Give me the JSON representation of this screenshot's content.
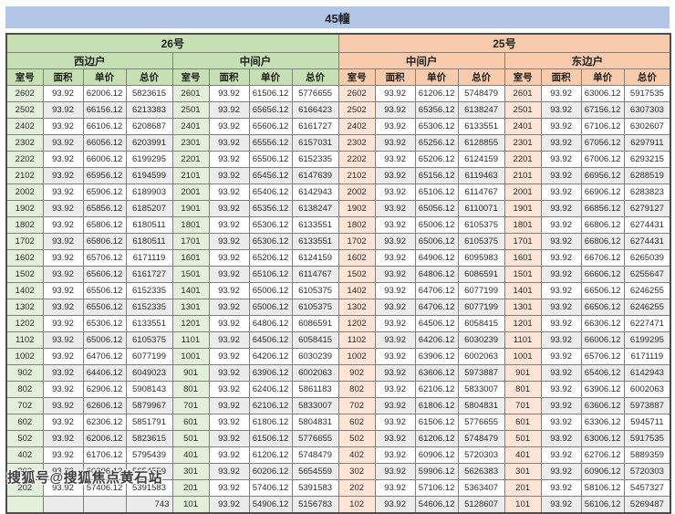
{
  "title": "45幢",
  "watermark": "搜狐号@搜狐焦点黄石站",
  "columns": [
    "室号",
    "面积",
    "单价",
    "总价"
  ],
  "colors": {
    "title_bar": "#b4c6e7",
    "section_26_header": "#c6e0b4",
    "section_25_header": "#f8cbad",
    "room_col_26_tint": "#e2efda",
    "room_col_25_tint": "#fce4d6",
    "row_stripe": "#ececec",
    "grid_border": "#808080"
  },
  "sections": [
    {
      "name": "26号",
      "groups": [
        {
          "name": "西边户",
          "rows": [
            [
              "2602",
              "93.92",
              "62006.12",
              "5823615"
            ],
            [
              "2502",
              "93.92",
              "66156.12",
              "6213383"
            ],
            [
              "2402",
              "93.92",
              "66106.12",
              "6208687"
            ],
            [
              "2302",
              "93.92",
              "66056.12",
              "6203991"
            ],
            [
              "2202",
              "93.92",
              "66006.12",
              "6199295"
            ],
            [
              "2102",
              "93.92",
              "65956.12",
              "6194599"
            ],
            [
              "2002",
              "93.92",
              "65906.12",
              "6189903"
            ],
            [
              "1902",
              "93.92",
              "65856.12",
              "6185207"
            ],
            [
              "1802",
              "93.92",
              "65806.12",
              "6180511"
            ],
            [
              "1702",
              "93.92",
              "65806.12",
              "6180511"
            ],
            [
              "1602",
              "93.92",
              "65706.12",
              "6171119"
            ],
            [
              "1502",
              "93.92",
              "65606.12",
              "6161727"
            ],
            [
              "1402",
              "93.92",
              "65506.12",
              "6152335"
            ],
            [
              "1302",
              "93.92",
              "65506.12",
              "6152335"
            ],
            [
              "1202",
              "93.92",
              "65306.12",
              "6133551"
            ],
            [
              "1102",
              "93.92",
              "65006.12",
              "6105375"
            ],
            [
              "1002",
              "93.92",
              "64706.12",
              "6077199"
            ],
            [
              "902",
              "93.92",
              "64406.12",
              "6049023"
            ],
            [
              "802",
              "93.92",
              "62906.12",
              "5908143"
            ],
            [
              "702",
              "93.92",
              "62606.12",
              "5879967"
            ],
            [
              "602",
              "93.92",
              "62306.12",
              "5851791"
            ],
            [
              "502",
              "93.92",
              "62006.12",
              "5823615"
            ],
            [
              "402",
              "93.92",
              "61706.12",
              "5795439"
            ],
            [
              "302",
              "93.92",
              "60206.12",
              "5654559"
            ],
            [
              "202",
              "93.92",
              "57406.12",
              "5391583"
            ],
            [
              "",
              "",
              "",
              "743"
            ]
          ]
        },
        {
          "name": "中间户",
          "rows": [
            [
              "2601",
              "93.92",
              "61506.12",
              "5776655"
            ],
            [
              "2501",
              "93.92",
              "65656.12",
              "6166423"
            ],
            [
              "2401",
              "93.92",
              "65606.12",
              "6161727"
            ],
            [
              "2301",
              "93.92",
              "65556.12",
              "6157031"
            ],
            [
              "2201",
              "93.92",
              "65506.12",
              "6152335"
            ],
            [
              "2101",
              "93.92",
              "65456.12",
              "6147639"
            ],
            [
              "2001",
              "93.92",
              "65406.12",
              "6142943"
            ],
            [
              "1901",
              "93.92",
              "65356.12",
              "6138247"
            ],
            [
              "1801",
              "93.92",
              "65306.12",
              "6133551"
            ],
            [
              "1701",
              "93.92",
              "65306.12",
              "6133551"
            ],
            [
              "1601",
              "93.92",
              "65206.12",
              "6124159"
            ],
            [
              "1501",
              "93.92",
              "65106.12",
              "6114767"
            ],
            [
              "1401",
              "93.92",
              "65006.12",
              "6105375"
            ],
            [
              "1301",
              "93.92",
              "65006.12",
              "6105375"
            ],
            [
              "1201",
              "93.92",
              "64806.12",
              "6086591"
            ],
            [
              "1101",
              "93.92",
              "64506.12",
              "6058415"
            ],
            [
              "1001",
              "93.92",
              "64206.12",
              "6030239"
            ],
            [
              "901",
              "93.92",
              "63906.12",
              "6002063"
            ],
            [
              "801",
              "93.92",
              "62406.12",
              "5861183"
            ],
            [
              "701",
              "93.92",
              "62106.12",
              "5833007"
            ],
            [
              "601",
              "93.92",
              "61806.12",
              "5804831"
            ],
            [
              "501",
              "93.92",
              "61506.12",
              "5776655"
            ],
            [
              "401",
              "93.92",
              "61206.12",
              "5748479"
            ],
            [
              "301",
              "93.92",
              "60206.12",
              "5654559"
            ],
            [
              "201",
              "93.92",
              "57406.12",
              "5391583"
            ],
            [
              "101",
              "93.92",
              "54906.12",
              "5156783"
            ]
          ]
        }
      ]
    },
    {
      "name": "25号",
      "groups": [
        {
          "name": "中间户",
          "rows": [
            [
              "2602",
              "93.92",
              "61206.12",
              "5748479"
            ],
            [
              "2502",
              "93.92",
              "65356.12",
              "6138247"
            ],
            [
              "2402",
              "93.92",
              "65306.12",
              "6133551"
            ],
            [
              "2302",
              "93.92",
              "65256.12",
              "6128855"
            ],
            [
              "2202",
              "93.92",
              "65206.12",
              "6124159"
            ],
            [
              "2102",
              "93.92",
              "65156.12",
              "6119463"
            ],
            [
              "2002",
              "93.92",
              "65106.12",
              "6114767"
            ],
            [
              "1902",
              "93.92",
              "65056.12",
              "6110071"
            ],
            [
              "1802",
              "93.92",
              "65006.12",
              "6105375"
            ],
            [
              "1702",
              "93.92",
              "65006.12",
              "6105375"
            ],
            [
              "1602",
              "93.92",
              "64906.12",
              "6095983"
            ],
            [
              "1502",
              "93.92",
              "64806.12",
              "6086591"
            ],
            [
              "1402",
              "93.92",
              "64706.12",
              "6077199"
            ],
            [
              "1302",
              "93.92",
              "64706.12",
              "6077199"
            ],
            [
              "1202",
              "93.92",
              "64506.12",
              "6058415"
            ],
            [
              "1102",
              "93.92",
              "64206.12",
              "6030239"
            ],
            [
              "1002",
              "93.92",
              "63906.12",
              "6002063"
            ],
            [
              "902",
              "93.92",
              "63606.12",
              "5973887"
            ],
            [
              "802",
              "93.92",
              "62106.12",
              "5833007"
            ],
            [
              "702",
              "93.92",
              "61806.12",
              "5804831"
            ],
            [
              "602",
              "93.92",
              "61506.12",
              "5776655"
            ],
            [
              "502",
              "93.92",
              "61206.12",
              "5748479"
            ],
            [
              "402",
              "93.92",
              "60906.12",
              "5720303"
            ],
            [
              "302",
              "93.92",
              "59906.12",
              "5626383"
            ],
            [
              "202",
              "93.92",
              "57106.12",
              "5363407"
            ],
            [
              "102",
              "93.92",
              "54606.12",
              "5128607"
            ]
          ]
        },
        {
          "name": "东边户",
          "rows": [
            [
              "2601",
              "93.92",
              "63006.12",
              "5917535"
            ],
            [
              "2501",
              "93.92",
              "67156.12",
              "6307303"
            ],
            [
              "2401",
              "93.92",
              "67106.12",
              "6302607"
            ],
            [
              "2301",
              "93.92",
              "67056.12",
              "6297911"
            ],
            [
              "2201",
              "93.92",
              "67006.12",
              "6293215"
            ],
            [
              "2101",
              "93.92",
              "66956.12",
              "6288519"
            ],
            [
              "2001",
              "93.92",
              "66906.12",
              "6283823"
            ],
            [
              "1901",
              "93.92",
              "66856.12",
              "6279127"
            ],
            [
              "1801",
              "93.92",
              "66806.12",
              "6274431"
            ],
            [
              "1701",
              "93.92",
              "66806.12",
              "6274431"
            ],
            [
              "1601",
              "93.92",
              "66706.12",
              "6265039"
            ],
            [
              "1501",
              "93.92",
              "66606.12",
              "6255647"
            ],
            [
              "1401",
              "93.92",
              "66506.12",
              "6246255"
            ],
            [
              "1301",
              "93.92",
              "66506.12",
              "6246255"
            ],
            [
              "1201",
              "93.92",
              "66306.12",
              "6227471"
            ],
            [
              "1101",
              "93.92",
              "66006.12",
              "6199295"
            ],
            [
              "1001",
              "93.92",
              "65706.12",
              "6171119"
            ],
            [
              "901",
              "93.92",
              "65406.12",
              "6142943"
            ],
            [
              "801",
              "93.92",
              "63906.12",
              "6002063"
            ],
            [
              "701",
              "93.92",
              "63606.12",
              "5973887"
            ],
            [
              "601",
              "93.92",
              "63306.12",
              "5945711"
            ],
            [
              "501",
              "93.92",
              "63006.12",
              "5917535"
            ],
            [
              "401",
              "93.92",
              "62706.12",
              "5889359"
            ],
            [
              "301",
              "93.92",
              "60906.12",
              "5720303"
            ],
            [
              "201",
              "93.92",
              "58106.12",
              "5457327"
            ],
            [
              "101",
              "93.92",
              "56106.12",
              "5269487"
            ]
          ]
        }
      ]
    }
  ]
}
